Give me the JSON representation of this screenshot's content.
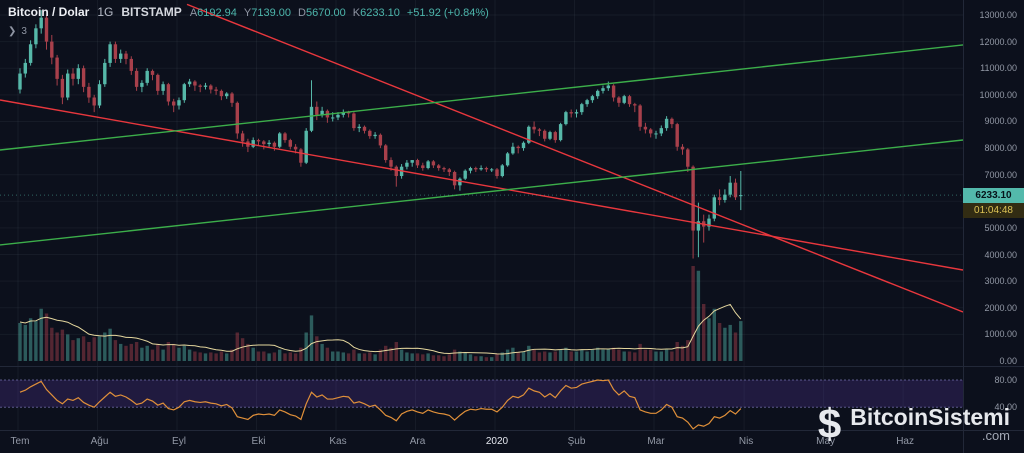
{
  "header": {
    "symbol": "Bitcoin / Dolar",
    "interval": "1G",
    "exchange": "BITSTAMP",
    "o_label": "A",
    "o": "6192.94",
    "h_label": "Y",
    "h": "7139.00",
    "l_label": "D",
    "l": "5670.00",
    "c_label": "K",
    "c": "6233.10",
    "change": "+51.92 (+0.84%)"
  },
  "icons": {
    "chevron_right": "❯"
  },
  "object_tree_count": "3",
  "last_price_label": "6233.10",
  "countdown": "01:04:48",
  "watermark": {
    "symbol": "$",
    "name": "BitcoinSistemi",
    "tld": ".com"
  },
  "colors": {
    "background": "#0c101c",
    "candle_up": "#56b8a9",
    "candle_down": "#a8404b",
    "trend_red": "#e8373d",
    "trend_green": "#3cae4a",
    "rsi_line": "#e0903a",
    "rsi_band_fill": "rgba(106,66,193,0.22)",
    "volume_ma": "#e5d79e",
    "price_badge": "#53b9ab"
  },
  "chart_data": {
    "type": "candlestick",
    "title": "Bitcoin / Dolar 1G BITSTAMP",
    "ylim": [
      0,
      13560
    ],
    "last_price": 6233.1,
    "y_ticks": [
      13000,
      12000,
      11000,
      10000,
      9000,
      8000,
      7000,
      6000,
      5000,
      4000,
      3000,
      2000,
      1000,
      0
    ],
    "x_ticks": [
      {
        "label": "Tem",
        "i": 0
      },
      {
        "label": "Ağu",
        "i": 15
      },
      {
        "label": "Eyl",
        "i": 30
      },
      {
        "label": "Eki",
        "i": 45
      },
      {
        "label": "Kas",
        "i": 60
      },
      {
        "label": "Ara",
        "i": 75
      },
      {
        "label": "2020",
        "i": 90,
        "strong": true
      },
      {
        "label": "Şub",
        "i": 105
      },
      {
        "label": "Mar",
        "i": 120
      },
      {
        "label": "Nis",
        "i": 137
      },
      {
        "label": "May",
        "i": 152
      },
      {
        "label": "Haz",
        "i": 167
      }
    ],
    "candles_format": "open,high,low,close,volume",
    "candles": [
      [
        10200,
        11000,
        10050,
        10800,
        40
      ],
      [
        10800,
        11350,
        10650,
        11200,
        38
      ],
      [
        11200,
        12050,
        11100,
        11900,
        45
      ],
      [
        11900,
        12650,
        11750,
        12500,
        42
      ],
      [
        12500,
        13180,
        12300,
        12900,
        55
      ],
      [
        12900,
        13000,
        11700,
        12000,
        50
      ],
      [
        12000,
        12250,
        11150,
        11400,
        35
      ],
      [
        11400,
        11500,
        10350,
        10600,
        30
      ],
      [
        10600,
        10750,
        9650,
        9900,
        33
      ],
      [
        9900,
        10950,
        9800,
        10800,
        28
      ],
      [
        10800,
        11000,
        10350,
        10600,
        22
      ],
      [
        10600,
        11150,
        10400,
        11000,
        24
      ],
      [
        11000,
        11100,
        10100,
        10300,
        26
      ],
      [
        10300,
        10450,
        9700,
        9900,
        20
      ],
      [
        9900,
        10000,
        9350,
        9600,
        25
      ],
      [
        9600,
        10550,
        9500,
        10400,
        26
      ],
      [
        10400,
        11350,
        10300,
        11200,
        30
      ],
      [
        11200,
        12000,
        11050,
        11900,
        34
      ],
      [
        11900,
        12000,
        11200,
        11350,
        22
      ],
      [
        11350,
        11700,
        11200,
        11550,
        18
      ],
      [
        11550,
        11650,
        11150,
        11350,
        16
      ],
      [
        11350,
        11450,
        10750,
        10900,
        18
      ],
      [
        10900,
        11000,
        10150,
        10300,
        20
      ],
      [
        10300,
        10550,
        10100,
        10450,
        14
      ],
      [
        10450,
        11000,
        10350,
        10900,
        16
      ],
      [
        10900,
        10950,
        10550,
        10750,
        12
      ],
      [
        10750,
        10800,
        10000,
        10150,
        18
      ],
      [
        10150,
        10500,
        10000,
        10400,
        12
      ],
      [
        10400,
        10450,
        9600,
        9750,
        20
      ],
      [
        9750,
        9850,
        9350,
        9600,
        18
      ],
      [
        9600,
        9900,
        9450,
        9800,
        14
      ],
      [
        9800,
        10450,
        9700,
        10400,
        16
      ],
      [
        10400,
        10600,
        10300,
        10500,
        12
      ],
      [
        10500,
        10550,
        10150,
        10350,
        10
      ],
      [
        10350,
        10400,
        10100,
        10300,
        9
      ],
      [
        10300,
        10450,
        10200,
        10350,
        8
      ],
      [
        10350,
        10400,
        10050,
        10200,
        9
      ],
      [
        10200,
        10300,
        10000,
        10150,
        8
      ],
      [
        10150,
        10200,
        9800,
        9950,
        10
      ],
      [
        9950,
        10100,
        9850,
        10050,
        8
      ],
      [
        10050,
        10100,
        9550,
        9700,
        12
      ],
      [
        9700,
        9750,
        8350,
        8550,
        30
      ],
      [
        8550,
        8650,
        8050,
        8250,
        24
      ],
      [
        8250,
        8350,
        7850,
        8050,
        18
      ],
      [
        8050,
        8400,
        8000,
        8300,
        14
      ],
      [
        8300,
        8350,
        8100,
        8250,
        10
      ],
      [
        8250,
        8300,
        7950,
        8150,
        10
      ],
      [
        8150,
        8300,
        8050,
        8200,
        8
      ],
      [
        8200,
        8250,
        7900,
        8050,
        9
      ],
      [
        8050,
        8600,
        8000,
        8550,
        12
      ],
      [
        8550,
        8600,
        8200,
        8300,
        8
      ],
      [
        8300,
        8350,
        7950,
        8050,
        9
      ],
      [
        8050,
        8150,
        7800,
        7950,
        8
      ],
      [
        7950,
        8000,
        7300,
        7450,
        14
      ],
      [
        7450,
        8750,
        7400,
        8650,
        30
      ],
      [
        8650,
        10550,
        8600,
        9550,
        48
      ],
      [
        9550,
        9750,
        9050,
        9250,
        26
      ],
      [
        9250,
        9550,
        9150,
        9400,
        18
      ],
      [
        9400,
        9450,
        8950,
        9150,
        14
      ],
      [
        9150,
        9350,
        9000,
        9150,
        10
      ],
      [
        9150,
        9350,
        9050,
        9250,
        10
      ],
      [
        9250,
        9450,
        9150,
        9350,
        9
      ],
      [
        9350,
        9400,
        9150,
        9300,
        8
      ],
      [
        9300,
        9350,
        8650,
        8750,
        12
      ],
      [
        8750,
        8900,
        8600,
        8800,
        8
      ],
      [
        8800,
        8850,
        8550,
        8650,
        8
      ],
      [
        8650,
        8700,
        8350,
        8450,
        9
      ],
      [
        8450,
        8600,
        8350,
        8500,
        7
      ],
      [
        8500,
        8550,
        8000,
        8100,
        12
      ],
      [
        8100,
        8150,
        7450,
        7550,
        16
      ],
      [
        7550,
        7650,
        7150,
        7300,
        14
      ],
      [
        7300,
        7350,
        6550,
        6950,
        20
      ],
      [
        6950,
        7400,
        6850,
        7300,
        12
      ],
      [
        7300,
        7550,
        7200,
        7450,
        9
      ],
      [
        7450,
        7550,
        7300,
        7550,
        8
      ],
      [
        7550,
        7600,
        7250,
        7350,
        8
      ],
      [
        7350,
        7450,
        7150,
        7250,
        7
      ],
      [
        7250,
        7550,
        7200,
        7500,
        8
      ],
      [
        7500,
        7550,
        7250,
        7350,
        6
      ],
      [
        7350,
        7400,
        7150,
        7250,
        6
      ],
      [
        7250,
        7300,
        7100,
        7200,
        5
      ],
      [
        7200,
        7250,
        6950,
        7100,
        7
      ],
      [
        7100,
        7150,
        6450,
        6600,
        12
      ],
      [
        6600,
        6900,
        6400,
        6850,
        10
      ],
      [
        6850,
        7200,
        6800,
        7150,
        9
      ],
      [
        7150,
        7300,
        7050,
        7250,
        7
      ],
      [
        7250,
        7300,
        7100,
        7200,
        5
      ],
      [
        7200,
        7350,
        7150,
        7250,
        5
      ],
      [
        7250,
        7300,
        7100,
        7200,
        4
      ],
      [
        7200,
        7250,
        7100,
        7200,
        4
      ],
      [
        7200,
        7250,
        6850,
        6950,
        8
      ],
      [
        6950,
        7400,
        6900,
        7350,
        9
      ],
      [
        7350,
        7850,
        7300,
        7800,
        12
      ],
      [
        7800,
        8200,
        7750,
        8050,
        14
      ],
      [
        8050,
        8100,
        7800,
        8000,
        9
      ],
      [
        8000,
        8250,
        7900,
        8200,
        10
      ],
      [
        8200,
        8850,
        8150,
        8800,
        16
      ],
      [
        8800,
        9000,
        8550,
        8700,
        12
      ],
      [
        8700,
        8750,
        8450,
        8650,
        9
      ],
      [
        8650,
        8700,
        8250,
        8350,
        10
      ],
      [
        8350,
        8650,
        8300,
        8600,
        9
      ],
      [
        8600,
        8650,
        8200,
        8300,
        10
      ],
      [
        8300,
        8950,
        8250,
        8900,
        12
      ],
      [
        8900,
        9400,
        8850,
        9350,
        14
      ],
      [
        9350,
        9450,
        9150,
        9300,
        10
      ],
      [
        9300,
        9450,
        9150,
        9350,
        10
      ],
      [
        9350,
        9700,
        9250,
        9650,
        12
      ],
      [
        9650,
        9850,
        9550,
        9800,
        10
      ],
      [
        9800,
        10000,
        9700,
        9950,
        12
      ],
      [
        9950,
        10200,
        9850,
        10150,
        14
      ],
      [
        10150,
        10350,
        10050,
        10250,
        12
      ],
      [
        10250,
        10500,
        10150,
        10350,
        13
      ],
      [
        10350,
        10400,
        9750,
        9900,
        14
      ],
      [
        9900,
        9950,
        9550,
        9700,
        12
      ],
      [
        9700,
        10000,
        9650,
        9950,
        10
      ],
      [
        9950,
        10000,
        9550,
        9650,
        10
      ],
      [
        9650,
        9700,
        9350,
        9600,
        9
      ],
      [
        9600,
        9650,
        8650,
        8800,
        18
      ],
      [
        8800,
        8950,
        8550,
        8700,
        12
      ],
      [
        8700,
        8750,
        8400,
        8550,
        12
      ],
      [
        8550,
        8650,
        8350,
        8550,
        10
      ],
      [
        8550,
        8850,
        8450,
        8750,
        10
      ],
      [
        8750,
        9200,
        8650,
        9100,
        12
      ],
      [
        9100,
        9150,
        8750,
        8900,
        10
      ],
      [
        8900,
        8950,
        7900,
        8050,
        20
      ],
      [
        8050,
        8150,
        7750,
        7950,
        16
      ],
      [
        7950,
        8000,
        7100,
        7300,
        22
      ],
      [
        7300,
        7350,
        3850,
        4900,
        100
      ],
      [
        4900,
        5950,
        3900,
        5250,
        95
      ],
      [
        5250,
        5500,
        4450,
        5050,
        60
      ],
      [
        5050,
        5500,
        4900,
        5350,
        45
      ],
      [
        5350,
        6250,
        5250,
        6150,
        55
      ],
      [
        6150,
        6450,
        5850,
        6050,
        40
      ],
      [
        6050,
        6450,
        5950,
        6250,
        35
      ],
      [
        6250,
        6950,
        6150,
        6700,
        38
      ],
      [
        6700,
        6850,
        6050,
        6150,
        30
      ],
      [
        6193,
        7139,
        5670,
        6233,
        42
      ]
    ],
    "rsi": [
      62,
      65,
      70,
      74,
      78,
      66,
      58,
      50,
      45,
      52,
      50,
      54,
      47,
      43,
      40,
      48,
      55,
      62,
      56,
      58,
      55,
      50,
      44,
      46,
      52,
      49,
      43,
      46,
      38,
      36,
      40,
      48,
      50,
      48,
      47,
      48,
      46,
      45,
      42,
      44,
      39,
      26,
      24,
      22,
      28,
      30,
      29,
      30,
      28,
      36,
      33,
      29,
      27,
      22,
      45,
      62,
      55,
      58,
      52,
      52,
      54,
      56,
      55,
      46,
      48,
      45,
      41,
      43,
      36,
      28,
      25,
      20,
      30,
      34,
      36,
      33,
      31,
      36,
      33,
      31,
      30,
      28,
      21,
      28,
      34,
      37,
      36,
      38,
      37,
      37,
      33,
      40,
      50,
      56,
      54,
      58,
      68,
      64,
      62,
      55,
      60,
      54,
      64,
      72,
      68,
      69,
      74,
      76,
      78,
      80,
      79,
      80,
      66,
      58,
      64,
      56,
      54,
      36,
      33,
      31,
      31,
      36,
      44,
      40,
      26,
      24,
      18,
      8,
      14,
      12,
      16,
      26,
      24,
      28,
      35,
      30,
      38
    ],
    "rsi_bands": {
      "upper": 80,
      "lower": 40
    },
    "trend_lines": [
      {
        "id": "red-descending-upper",
        "color": "#e8373d",
        "x1": 0,
        "p1": 9807,
        "x2": 963,
        "p2": 3419
      },
      {
        "id": "red-descending-steep",
        "color": "#e8373d",
        "x1": 187,
        "p1": 13400,
        "x2": 963,
        "p2": 1841
      },
      {
        "id": "green-ascending-upper",
        "color": "#3cae4a",
        "x1": 0,
        "p1": 7928,
        "x2": 963,
        "p2": 11874
      },
      {
        "id": "green-ascending-lower",
        "color": "#3cae4a",
        "x1": 0,
        "p1": 4359,
        "x2": 963,
        "p2": 8304
      }
    ],
    "indicators": [
      "Volume",
      "RSI"
    ]
  }
}
